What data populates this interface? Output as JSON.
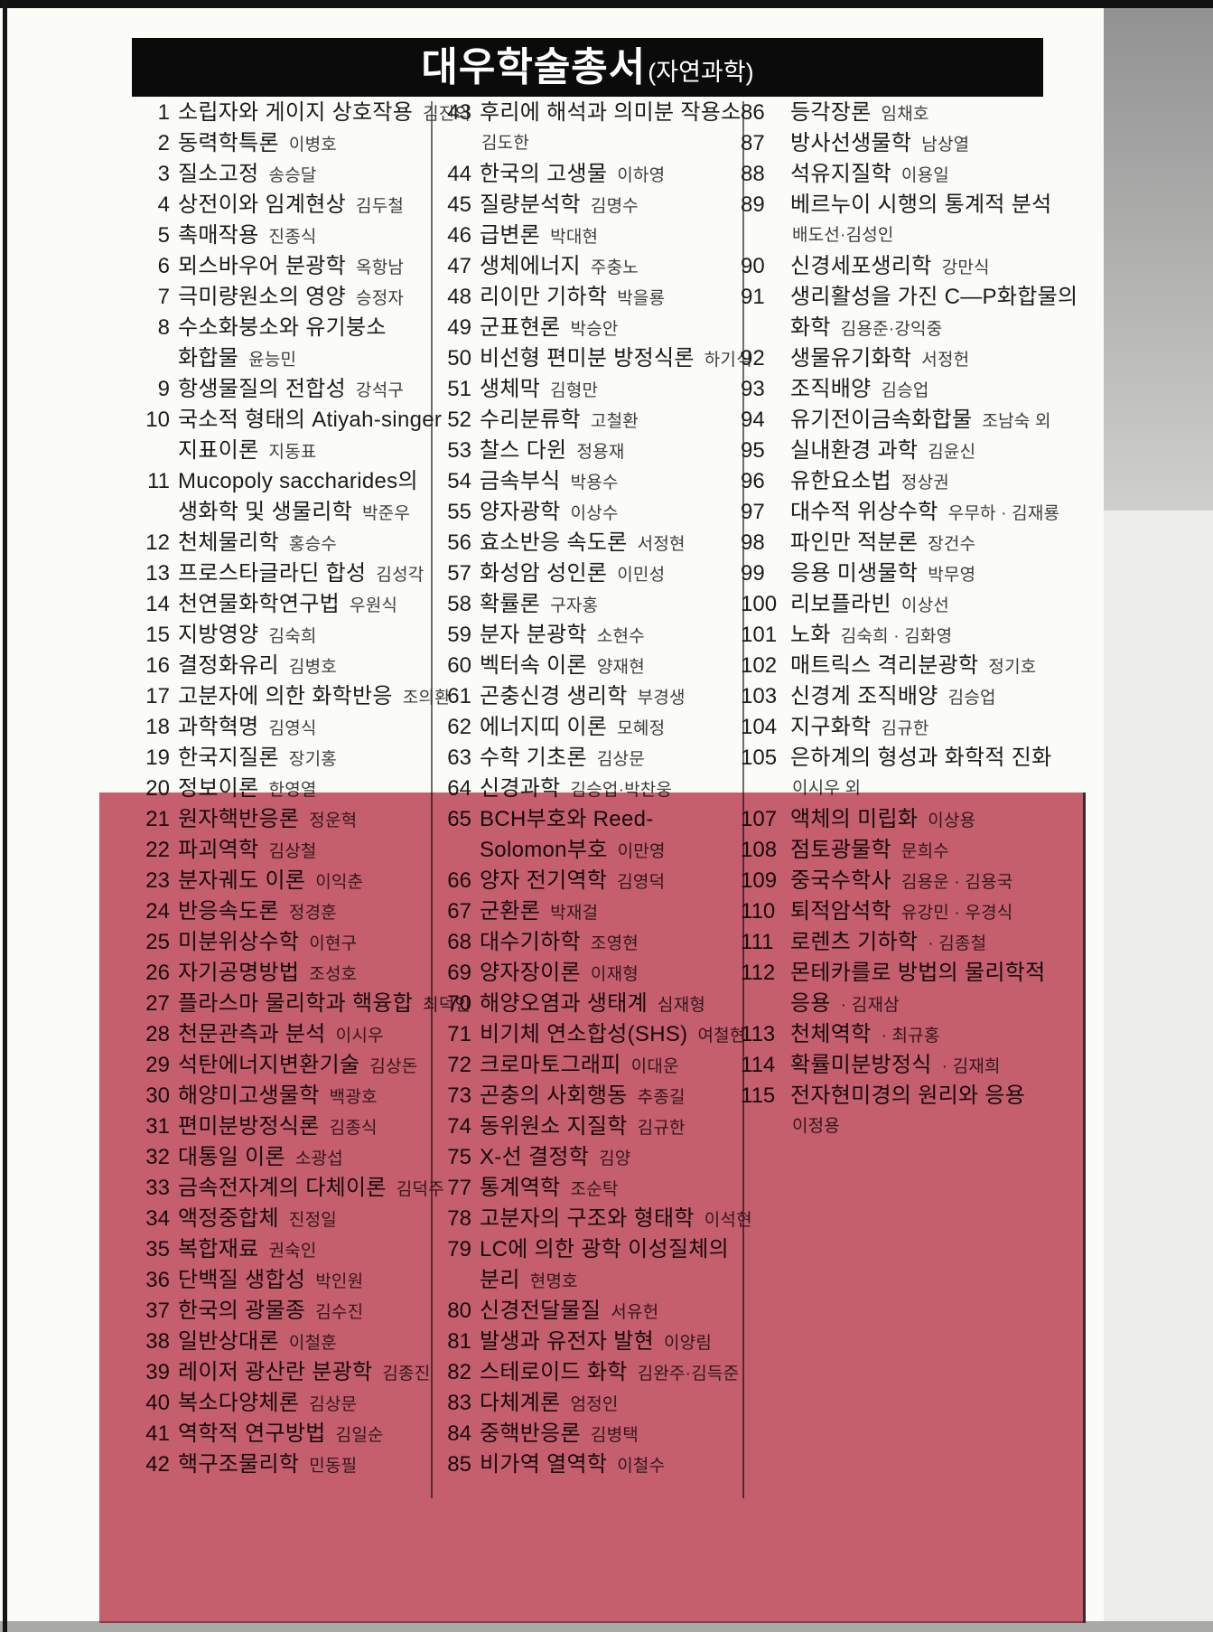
{
  "header": {
    "title": "대우학술총서",
    "subtitle": "(자연과학)"
  },
  "colors": {
    "overlay_pink": "#c85f70",
    "header_bg": "#0b0b0b"
  },
  "columns": [
    {
      "items": [
        {
          "n": "1",
          "t": "소립자와 게이지 상호작용",
          "a": "김진의"
        },
        {
          "n": "2",
          "t": "동력학특론",
          "a": "이병호"
        },
        {
          "n": "3",
          "t": "질소고정",
          "a": "송승달"
        },
        {
          "n": "4",
          "t": "상전이와 임계현상",
          "a": "김두철"
        },
        {
          "n": "5",
          "t": "촉매작용",
          "a": "진종식"
        },
        {
          "n": "6",
          "t": "뫼스바우어 분광학",
          "a": "옥항남"
        },
        {
          "n": "7",
          "t": "극미량원소의 영양",
          "a": "승정자"
        },
        {
          "n": "8",
          "t": "수소화붕소와 유기붕소",
          "t2": "화합물",
          "a2": "윤능민"
        },
        {
          "n": "9",
          "t": "항생물질의 전합성",
          "a": "강석구"
        },
        {
          "n": "10",
          "t": "국소적 형태의 Atiyah-singer",
          "t2": "지표이론",
          "a2": "지동표"
        },
        {
          "n": "11",
          "t": "Mucopoly saccharides의",
          "t2": "생화학 및 생물리학",
          "a2": "박준우"
        },
        {
          "n": "12",
          "t": "천체물리학",
          "a": "홍승수"
        },
        {
          "n": "13",
          "t": "프로스타글라딘 합성",
          "a": "김성각"
        },
        {
          "n": "14",
          "t": "천연물화학연구법",
          "a": "우원식"
        },
        {
          "n": "15",
          "t": "지방영양",
          "a": "김숙희"
        },
        {
          "n": "16",
          "t": "결정화유리",
          "a": "김병호"
        },
        {
          "n": "17",
          "t": "고분자에 의한 화학반응",
          "a": "조의환"
        },
        {
          "n": "18",
          "t": "과학혁명",
          "a": "김영식"
        },
        {
          "n": "19",
          "t": "한국지질론",
          "a": "장기홍"
        },
        {
          "n": "20",
          "t": "정보이론",
          "a": "한영열"
        },
        {
          "n": "21",
          "t": "원자핵반응론",
          "a": "정운혁"
        },
        {
          "n": "22",
          "t": "파괴역학",
          "a": "김상철"
        },
        {
          "n": "23",
          "t": "분자궤도 이론",
          "a": "이익춘"
        },
        {
          "n": "24",
          "t": "반응속도론",
          "a": "정경훈"
        },
        {
          "n": "25",
          "t": "미분위상수학",
          "a": "이현구"
        },
        {
          "n": "26",
          "t": "자기공명방법",
          "a": "조성호"
        },
        {
          "n": "27",
          "t": "플라스마 물리학과 핵융합",
          "a": "최덕인"
        },
        {
          "n": "28",
          "t": "천문관측과 분석",
          "a": "이시우"
        },
        {
          "n": "29",
          "t": "석탄에너지변환기술",
          "a": "김상돈"
        },
        {
          "n": "30",
          "t": "해양미고생물학",
          "a": "백광호"
        },
        {
          "n": "31",
          "t": "편미분방정식론",
          "a": "김종식"
        },
        {
          "n": "32",
          "t": "대통일 이론",
          "a": "소광섭"
        },
        {
          "n": "33",
          "t": "금속전자계의 다체이론",
          "a": "김덕주"
        },
        {
          "n": "34",
          "t": "액정중합체",
          "a": "진정일"
        },
        {
          "n": "35",
          "t": "복합재료",
          "a": "권숙인"
        },
        {
          "n": "36",
          "t": "단백질 생합성",
          "a": "박인원"
        },
        {
          "n": "37",
          "t": "한국의 광물종",
          "a": "김수진"
        },
        {
          "n": "38",
          "t": "일반상대론",
          "a": "이철훈"
        },
        {
          "n": "39",
          "t": "레이저 광산란 분광학",
          "a": "김종진"
        },
        {
          "n": "40",
          "t": "복소다양체론",
          "a": "김상문"
        },
        {
          "n": "41",
          "t": "역학적 연구방법",
          "a": "김일순"
        },
        {
          "n": "42",
          "t": "핵구조물리학",
          "a": "민동필"
        }
      ]
    },
    {
      "items": [
        {
          "n": "43",
          "t": "후리에 해석과 의미분 작용소",
          "t2": "",
          "a2": "김도한"
        },
        {
          "n": "44",
          "t": "한국의 고생물",
          "a": "이하영"
        },
        {
          "n": "45",
          "t": "질량분석학",
          "a": "김명수"
        },
        {
          "n": "46",
          "t": "급변론",
          "a": "박대현"
        },
        {
          "n": "47",
          "t": "생체에너지",
          "a": "주충노"
        },
        {
          "n": "48",
          "t": "리이만 기하학",
          "a": "박을룡"
        },
        {
          "n": "49",
          "t": "군표현론",
          "a": "박승안"
        },
        {
          "n": "50",
          "t": "비선형 편미분 방정식론",
          "a": "하기식"
        },
        {
          "n": "51",
          "t": "생체막",
          "a": "김형만"
        },
        {
          "n": "52",
          "t": "수리분류학",
          "a": "고철환"
        },
        {
          "n": "53",
          "t": "찰스 다윈",
          "a": "정용재"
        },
        {
          "n": "54",
          "t": "금속부식",
          "a": "박용수"
        },
        {
          "n": "55",
          "t": "양자광학",
          "a": "이상수"
        },
        {
          "n": "56",
          "t": "효소반응 속도론",
          "a": "서정현"
        },
        {
          "n": "57",
          "t": "화성암 성인론",
          "a": "이민성"
        },
        {
          "n": "58",
          "t": "확률론",
          "a": "구자홍"
        },
        {
          "n": "59",
          "t": "분자 분광학",
          "a": "소현수"
        },
        {
          "n": "60",
          "t": "벡터속 이론",
          "a": "양재현"
        },
        {
          "n": "61",
          "t": "곤충신경 생리학",
          "a": "부경생"
        },
        {
          "n": "62",
          "t": "에너지띠 이론",
          "a": "모혜정"
        },
        {
          "n": "63",
          "t": "수학 기초론",
          "a": "김상문"
        },
        {
          "n": "64",
          "t": "신경과학",
          "a": "김승업·박찬웅"
        },
        {
          "n": "65",
          "t": "BCH부호와 Reed-",
          "t2": "Solomon부호",
          "a2": "이만영"
        },
        {
          "n": "66",
          "t": "양자 전기역학",
          "a": "김영덕"
        },
        {
          "n": "67",
          "t": "군환론",
          "a": "박재걸"
        },
        {
          "n": "68",
          "t": "대수기하학",
          "a": "조영현"
        },
        {
          "n": "69",
          "t": "양자장이론",
          "a": "이재형"
        },
        {
          "n": "70",
          "t": "해양오염과 생태계",
          "a": "심재형"
        },
        {
          "n": "71",
          "t": "비기체 연소합성(SHS)",
          "a": "여철현"
        },
        {
          "n": "72",
          "t": "크로마토그래피",
          "a": "이대운"
        },
        {
          "n": "73",
          "t": "곤충의 사회행동",
          "a": "추종길"
        },
        {
          "n": "74",
          "t": "동위원소 지질학",
          "a": "김규한"
        },
        {
          "n": "75",
          "t": "X-선 결정학",
          "a": "김양"
        },
        {
          "n": "77",
          "t": "통계역학",
          "a": "조순탁"
        },
        {
          "n": "78",
          "t": "고분자의 구조와 형태학",
          "a": "이석현"
        },
        {
          "n": "79",
          "t": "LC에 의한 광학 이성질체의",
          "t2": "분리",
          "a2": "현명호"
        },
        {
          "n": "80",
          "t": "신경전달물질",
          "a": "서유헌"
        },
        {
          "n": "81",
          "t": "발생과 유전자 발현",
          "a": "이양림"
        },
        {
          "n": "82",
          "t": "스테로이드 화학",
          "a": "김완주·김득준"
        },
        {
          "n": "83",
          "t": "다체계론",
          "a": "엄정인"
        },
        {
          "n": "84",
          "t": "중핵반응론",
          "a": "김병택"
        },
        {
          "n": "85",
          "t": "비가역 열역학",
          "a": "이철수"
        }
      ]
    },
    {
      "items": [
        {
          "n": "86",
          "t": "등각장론",
          "a": "임채호"
        },
        {
          "n": "87",
          "t": "방사선생물학",
          "a": "남상열"
        },
        {
          "n": "88",
          "t": "석유지질학",
          "a": "이용일"
        },
        {
          "n": "89",
          "t": "베르누이 시행의 통계적 분석",
          "t2": "",
          "a2": "배도선·김성인"
        },
        {
          "n": "90",
          "t": "신경세포생리학",
          "a": "강만식"
        },
        {
          "n": "91",
          "t": "생리활성을 가진 C—P화합물의",
          "t2": "화학",
          "a2": "김용준·강익중"
        },
        {
          "n": "92",
          "t": "생물유기화학",
          "a": "서정헌"
        },
        {
          "n": "93",
          "t": "조직배양",
          "a": "김승업"
        },
        {
          "n": "94",
          "t": "유기전이금속화합물",
          "a": "조남숙 외"
        },
        {
          "n": "95",
          "t": "실내환경 과학",
          "a": "김윤신"
        },
        {
          "n": "96",
          "t": "유한요소법",
          "a": "정상권"
        },
        {
          "n": "97",
          "t": "대수적 위상수학",
          "a": "우무하 · 김재룡"
        },
        {
          "n": "98",
          "t": "파인만 적분론",
          "a": "장건수"
        },
        {
          "n": "99",
          "t": "응용 미생물학",
          "a": "박무영"
        },
        {
          "n": "100",
          "t": "리보플라빈",
          "a": "이상선"
        },
        {
          "n": "101",
          "t": "노화",
          "a": "김숙희 · 김화영"
        },
        {
          "n": "102",
          "t": "매트릭스 격리분광학",
          "a": "정기호"
        },
        {
          "n": "103",
          "t": "신경계 조직배양",
          "a": "김승업"
        },
        {
          "n": "104",
          "t": "지구화학",
          "a": "김규한"
        },
        {
          "n": "105",
          "t": "은하계의 형성과 화학적 진화",
          "t2": "",
          "a2": "이시우 외"
        },
        {
          "n": "107",
          "t": "액체의 미립화",
          "a": "이상용"
        },
        {
          "n": "108",
          "t": "점토광물학",
          "a": "문희수"
        },
        {
          "n": "109",
          "t": "중국수학사",
          "a": "김용운 · 김용국"
        },
        {
          "n": "110",
          "t": "퇴적암석학",
          "a": "유강민 · 우경식"
        },
        {
          "n": "111",
          "t": "로렌츠 기하학",
          "a": "· 김종철"
        },
        {
          "n": "112",
          "t": "몬테카를로 방법의 물리학적",
          "t2": "응용",
          "a2": "· 김재삼"
        },
        {
          "n": "113",
          "t": "천체역학",
          "a": "· 최규홍"
        },
        {
          "n": "114",
          "t": "확률미분방정식",
          "a": "· 김재희"
        },
        {
          "n": "115",
          "t": "전자현미경의 원리와 응용",
          "t2": "",
          "a2": "이정용"
        }
      ]
    }
  ]
}
